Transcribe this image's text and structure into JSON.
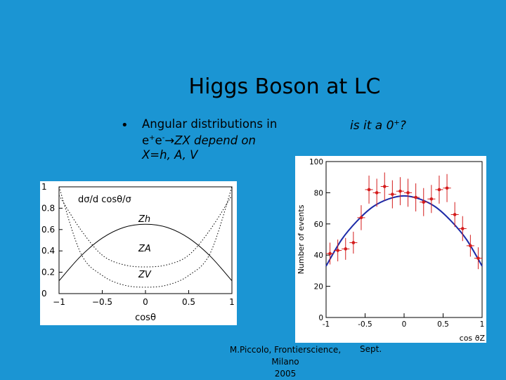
{
  "slide": {
    "title": "Higgs Boson at LC",
    "bullet_symbol": "•",
    "bullet_line1": "Angular distributions in",
    "bullet_line2_e1": "e",
    "bullet_line2_sup1": "+",
    "bullet_line2_e2": "e",
    "bullet_line2_sup2": "-",
    "bullet_line2_rest": "→ZX depend on",
    "bullet_line3": "X=h, A, V",
    "question_text": "is it a 0",
    "question_sup": "+",
    "question_end": "?",
    "footer_line1": "M.Piccolo, Frontierscience, Milano",
    "footer_line2": "2005",
    "footer_right": "Sept."
  },
  "chart_data": [
    {
      "type": "line",
      "title": "dσ/d cosθ/σ",
      "xlabel": "cosθ",
      "ylabel": "",
      "xlim": [
        -1,
        1
      ],
      "ylim": [
        0,
        1
      ],
      "x_ticks": [
        "-1",
        "-0.5",
        "0",
        "0.5",
        "1"
      ],
      "y_ticks": [
        "0",
        "0.2",
        "0.4",
        "0.6",
        "0.8",
        "1"
      ],
      "x": [
        -1,
        -0.75,
        -0.5,
        -0.25,
        0,
        0.25,
        0.5,
        0.75,
        1
      ],
      "series": [
        {
          "name": "Zh",
          "style": "solid",
          "values": [
            0.12,
            0.35,
            0.52,
            0.62,
            0.65,
            0.62,
            0.52,
            0.35,
            0.12
          ]
        },
        {
          "name": "ZA",
          "style": "dotted",
          "values": [
            0.92,
            0.6,
            0.36,
            0.27,
            0.25,
            0.27,
            0.36,
            0.6,
            0.92
          ]
        },
        {
          "name": "ZV",
          "style": "dotted",
          "values": [
            1.0,
            0.38,
            0.17,
            0.08,
            0.06,
            0.08,
            0.17,
            0.38,
            1.0
          ]
        }
      ],
      "curve_labels": [
        "Zh",
        "ZA",
        "ZV"
      ]
    },
    {
      "type": "scatter",
      "xlabel": "cos ϑZ",
      "ylabel": "Number of events",
      "xlim": [
        -1,
        1
      ],
      "ylim": [
        0,
        100
      ],
      "x_ticks": [
        "-1",
        "-0.5",
        "0",
        "0.5",
        "1"
      ],
      "y_ticks": [
        "0",
        "20",
        "40",
        "60",
        "80",
        "100"
      ],
      "colors": {
        "points": "#d41c1c",
        "fit": "#1d2ba8"
      },
      "series": [
        {
          "name": "data",
          "x": [
            -0.95,
            -0.85,
            -0.75,
            -0.65,
            -0.55,
            -0.45,
            -0.35,
            -0.25,
            -0.15,
            -0.05,
            0.05,
            0.15,
            0.25,
            0.35,
            0.45,
            0.55,
            0.65,
            0.75,
            0.85,
            0.95
          ],
          "values": [
            41,
            43,
            44,
            48,
            64,
            82,
            80,
            84,
            79,
            81,
            80,
            77,
            74,
            76,
            82,
            83,
            66,
            57,
            46,
            38
          ],
          "errors": [
            7,
            7,
            7,
            7,
            8,
            9,
            9,
            9,
            9,
            9,
            9,
            9,
            9,
            9,
            9,
            9,
            8,
            8,
            7,
            7
          ]
        },
        {
          "name": "fit",
          "x": [
            -1,
            -0.8,
            -0.6,
            -0.4,
            -0.2,
            0,
            0.2,
            0.4,
            0.6,
            0.8,
            1
          ],
          "values": [
            33,
            50,
            62,
            71,
            76,
            78,
            76,
            71,
            62,
            50,
            33
          ]
        }
      ]
    }
  ]
}
